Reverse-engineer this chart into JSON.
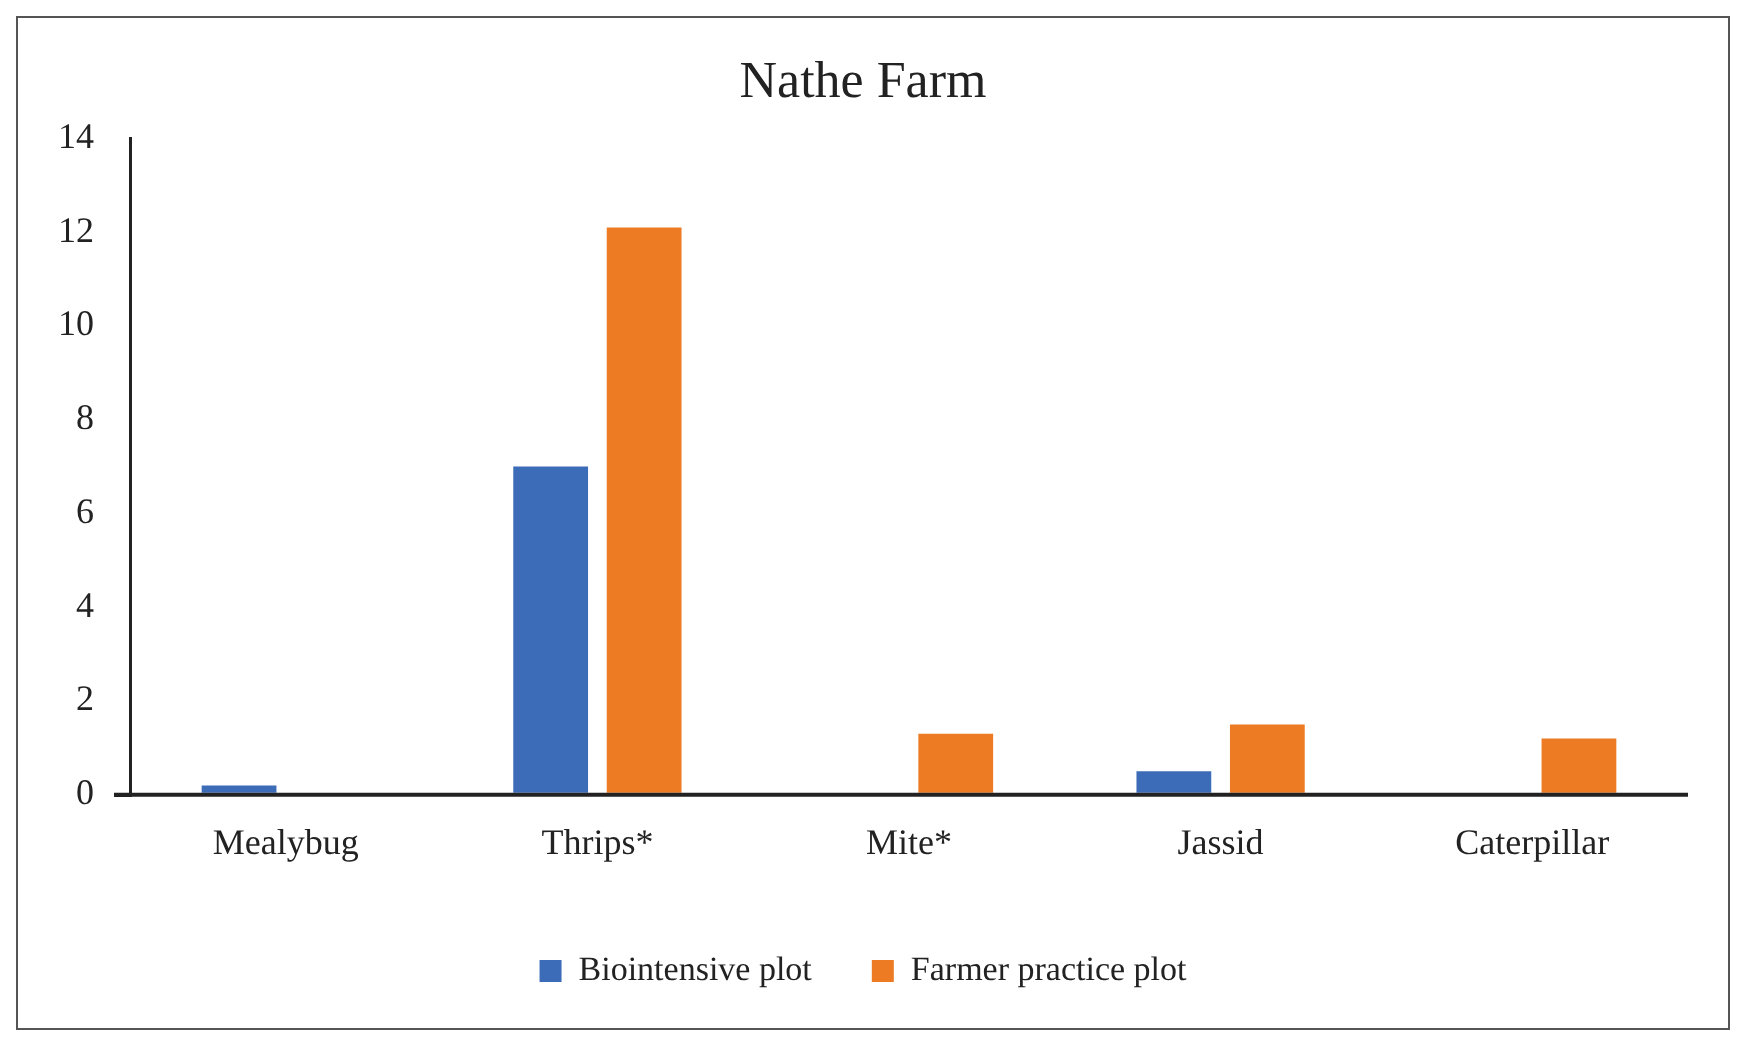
{
  "chart_data": {
    "type": "bar",
    "title": "Nathe Farm",
    "categories": [
      "Mealybug",
      "Thrips*",
      "Mite*",
      "Jassid",
      "Caterpillar"
    ],
    "series": [
      {
        "name": "Biointensive plot",
        "color": "#3c6bb7",
        "values": [
          0.2,
          7.0,
          0,
          0.5,
          0
        ]
      },
      {
        "name": "Farmer practice plot",
        "color": "#ec7b23",
        "values": [
          0,
          12.1,
          1.3,
          1.5,
          1.2
        ]
      }
    ],
    "ylim": [
      0,
      14
    ],
    "yticks": [
      0,
      2,
      4,
      6,
      8,
      10,
      12,
      14
    ],
    "grid": false,
    "legend": "bottom"
  }
}
